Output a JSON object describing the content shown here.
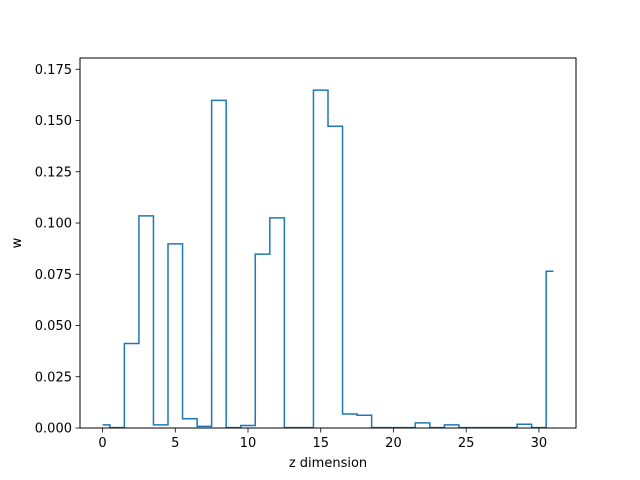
{
  "chart_data": {
    "type": "line",
    "style": "step",
    "xlabel": "z dimension",
    "ylabel": "w",
    "xlim": [
      -1.55,
      32.55
    ],
    "ylim": [
      0,
      0.1805
    ],
    "grid": false,
    "x_ticks": [
      0,
      5,
      10,
      15,
      20,
      25,
      30
    ],
    "x_tick_labels": [
      "0",
      "5",
      "10",
      "15",
      "20",
      "25",
      "30"
    ],
    "y_ticks": [
      0.0,
      0.025,
      0.05,
      0.075,
      0.1,
      0.125,
      0.15,
      0.175
    ],
    "y_tick_labels": [
      "0.000",
      "0.025",
      "0.050",
      "0.075",
      "0.100",
      "0.125",
      "0.150",
      "0.175"
    ],
    "series": [
      {
        "color": "#1f77b4",
        "x": [
          0,
          1,
          2,
          3,
          4,
          5,
          6,
          7,
          8,
          9,
          10,
          11,
          12,
          13,
          14,
          15,
          16,
          17,
          18,
          19,
          20,
          21,
          22,
          23,
          24,
          25,
          26,
          27,
          28,
          29,
          30,
          31
        ],
        "values": [
          0.0015,
          0.0002,
          0.0412,
          0.1035,
          0.0015,
          0.0898,
          0.0045,
          0.0008,
          0.1598,
          0.0002,
          0.0012,
          0.0848,
          0.1025,
          0.0002,
          0.0002,
          0.1648,
          0.1472,
          0.0068,
          0.0062,
          0.0002,
          0.0002,
          0.0002,
          0.0025,
          0.0002,
          0.0015,
          0.0002,
          0.0002,
          0.0002,
          0.0002,
          0.0018,
          0.0002,
          0.0765
        ]
      }
    ]
  }
}
